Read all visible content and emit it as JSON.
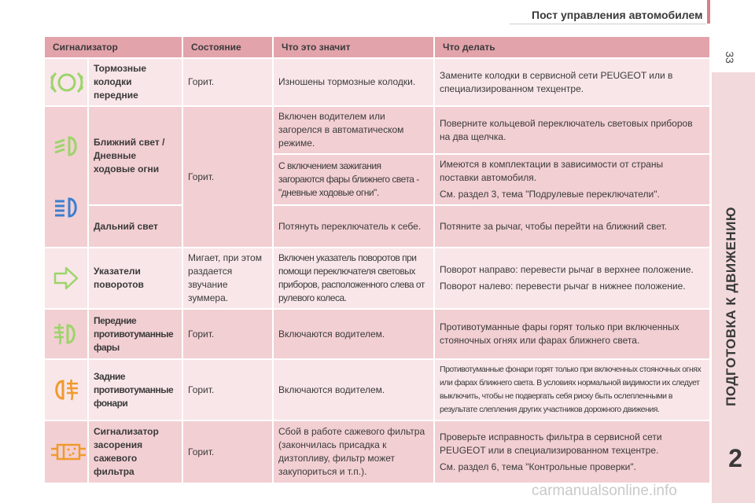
{
  "page": {
    "header_title": "Пост управления автомобилем",
    "page_number": "33",
    "chapter_title": "ПОДГОТОВКА К ДВИЖЕНИЮ",
    "chapter_number": "2",
    "watermark": "carmanualsonline.info"
  },
  "table": {
    "headers": [
      "Сигнализатор",
      "Состояние",
      "Что это значит",
      "Что делать"
    ],
    "rows": {
      "brake": {
        "icon": "brake-pad-wear-icon",
        "name": "Тормозные колодки передние",
        "state": "Горит.",
        "meaning": "Изношены тормозные колодки.",
        "action": "Замените колодки в сервисной сети PEUGEOT или в специализированном техцентре."
      },
      "low_beam": {
        "icon": "low-beam-headlight-icon",
        "name": "Ближний свет / Дневные ходовые огни",
        "state": "Горит.",
        "meaning_1": "Включен водителем или загорелся в автоматическом режиме.",
        "action_1": "Поверните кольцевой переключатель световых приборов на два щелчка.",
        "meaning_2": "С включением зажигания загораются фары ближнего света - \"дневные ходовые огни\".",
        "action_2a": "Имеются в комплектации в зависимости от страны поставки автомобиля.",
        "action_2b": "См. раздел 3, тема \"Подрулевые переключатели\"."
      },
      "high_beam": {
        "icon": "high-beam-headlight-icon",
        "name": "Дальний свет",
        "meaning": "Потянуть переключатель к себе.",
        "action": "Потяните за рычаг, чтобы перейти на ближний свет."
      },
      "turn": {
        "icon": "turn-signal-arrow-icon",
        "name": "Указатели поворотов",
        "state": "Мигает, при этом раздается звучание зуммера.",
        "meaning": "Включен указатель поворотов при помощи переключателя световых приборов, расположенного слева от рулевого колеса.",
        "action_1": "Поворот направо: перевести рычаг в верхнее положение.",
        "action_2": "Поворот налево: перевести рычаг в нижнее положение."
      },
      "front_fog": {
        "icon": "front-fog-light-icon",
        "name": "Передние противотуманные фары",
        "state": "Горит.",
        "meaning": "Включаются водителем.",
        "action": "Противотуманные фары горят только при включенных стояночных огнях или фарах ближнего света."
      },
      "rear_fog": {
        "icon": "rear-fog-light-icon",
        "name": "Задние противотуманные фонари",
        "state": "Горит.",
        "meaning": "Включаются водителем.",
        "action": "Противотуманные фонари горят только при включенных стояночных огнях или фарах ближнего света. В условиях нормальной видимости их следует выключить, чтобы не подвергать себя риску быть ослепленными в результате слепления других участников дорожного движения."
      },
      "filter": {
        "icon": "particulate-filter-clogged-icon",
        "name": "Сигнализатор засорения сажевого фильтра",
        "state": "Горит.",
        "meaning": "Сбой в работе сажевого фильтра (закончилась присадка к дизтопливу, фильтр может закупориться и т.п.).",
        "action_1": "Проверьте исправность фильтра в сервисной сети PEUGEOT или в специализированном техцентре.",
        "action_2": "См. раздел 6, тема \"Контрольные проверки\"."
      }
    }
  },
  "colors": {
    "header_bg": "#e3a3ab",
    "row_light": "#f9e6e8",
    "row_dark": "#f2cfd3",
    "icon_green": "#9cd46a",
    "side_panel": "#f2d9dc"
  }
}
